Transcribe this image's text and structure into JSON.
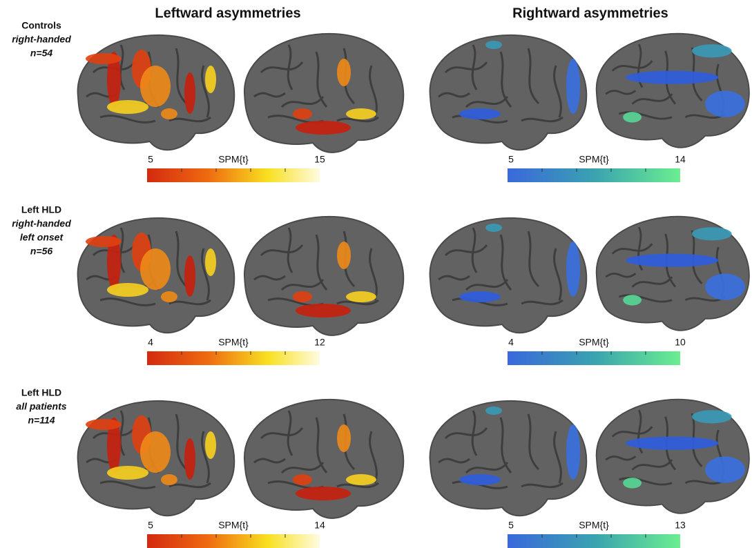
{
  "column_titles": [
    "Leftward asymmetries",
    "Rightward asymmetries"
  ],
  "rows": [
    {
      "group": "Controls",
      "lines": [
        "right-handed"
      ],
      "n": "n=54",
      "left_scale": {
        "min": 5,
        "label": "SPM{t}",
        "max": 15
      },
      "right_scale": {
        "min": 5,
        "label": "SPM{t}",
        "max": 14
      }
    },
    {
      "group": "Left HLD",
      "lines": [
        "right-handed",
        "left onset"
      ],
      "n": "n=56",
      "left_scale": {
        "min": 4,
        "label": "SPM{t}",
        "max": 12
      },
      "right_scale": {
        "min": 4,
        "label": "SPM{t}",
        "max": 10
      }
    },
    {
      "group": "Left HLD",
      "lines": [
        "all patients"
      ],
      "n": "n=114",
      "left_scale": {
        "min": 5,
        "label": "SPM{t}",
        "max": 14
      },
      "right_scale": {
        "min": 5,
        "label": "SPM{t}",
        "max": 13
      }
    }
  ]
}
